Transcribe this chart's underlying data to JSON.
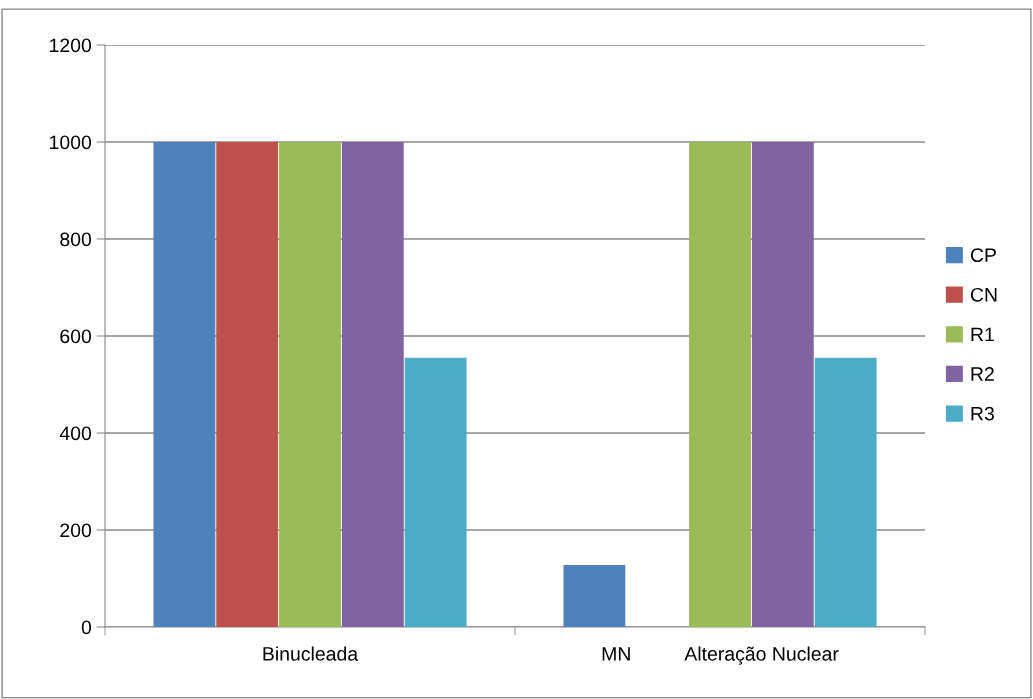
{
  "chart_data": {
    "type": "bar",
    "categories": [
      "Binucleada",
      "MN          Alteração Nuclear"
    ],
    "series": [
      {
        "name": "CP",
        "color": "#4f81bd",
        "values": [
          1000,
          128
        ]
      },
      {
        "name": "CN",
        "color": "#c0504d",
        "values": [
          1000,
          null
        ]
      },
      {
        "name": "R1",
        "color": "#9bbb59",
        "values": [
          1000,
          1000
        ]
      },
      {
        "name": "R2",
        "color": "#8064a2",
        "values": [
          1000,
          1000
        ]
      },
      {
        "name": "R3",
        "color": "#4bacc6",
        "values": [
          555,
          555
        ]
      }
    ],
    "ylim": [
      0,
      1200
    ],
    "yticks": [
      0,
      200,
      400,
      600,
      800,
      1000,
      1200
    ],
    "grid": "y",
    "legend": "right"
  }
}
